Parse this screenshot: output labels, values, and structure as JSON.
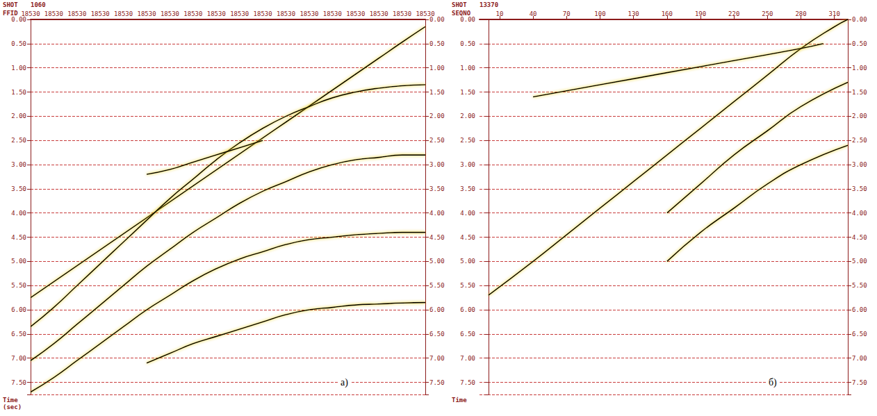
{
  "chart_data": [
    {
      "type": "line",
      "shot_label": "SHOT",
      "shot": "1060",
      "xlabel": "FFID",
      "ylabel": "Time (sec)",
      "panel": "а)",
      "categories": [
        "18530",
        "18530",
        "18530",
        "18530",
        "18530",
        "18530",
        "18530",
        "18530",
        "18530",
        "18530",
        "18530",
        "18530",
        "18530",
        "18530",
        "18530",
        "18530",
        "18530",
        "18530"
      ],
      "ylim": [
        0,
        7.75
      ],
      "yticks": [
        {
          "value": 0,
          "label": "0.00"
        },
        {
          "value": 0.5,
          "label": "0.50"
        },
        {
          "value": 1,
          "label": "1.00"
        },
        {
          "value": 1.5,
          "label": "1.50"
        },
        {
          "value": 2,
          "label": "2.00"
        },
        {
          "value": 2.5,
          "label": "2.50"
        },
        {
          "value": 3,
          "label": "3.00"
        },
        {
          "value": 3.5,
          "label": "3.50"
        },
        {
          "value": 4,
          "label": "4.00"
        },
        {
          "value": 4.5,
          "label": "4.50"
        },
        {
          "value": 5,
          "label": "5.00"
        },
        {
          "value": 5.5,
          "label": "5.50"
        },
        {
          "value": 6,
          "label": "6.00"
        },
        {
          "value": 6.5,
          "label": "6.50"
        },
        {
          "value": 7,
          "label": "7.00"
        },
        {
          "value": 7.5,
          "label": "7.50"
        }
      ],
      "grid": true,
      "series": [
        {
          "color": "#000000",
          "values": [
            5.75,
            5.42,
            5.09,
            4.76,
            4.43,
            4.1,
            3.77,
            3.44,
            3.11,
            2.78,
            2.45,
            2.12,
            1.79,
            1.46,
            1.13,
            0.8,
            0.47,
            0.15
          ]
        },
        {
          "color": "#000000",
          "values": [
            6.35,
            5.95,
            5.5,
            5.05,
            4.6,
            4.15,
            3.7,
            3.3,
            2.9,
            2.55,
            2.25,
            2.0,
            1.8,
            1.62,
            1.5,
            1.42,
            1.37,
            1.35
          ]
        },
        {
          "color": "#000000",
          "values": [
            7.05,
            6.7,
            6.3,
            5.9,
            5.5,
            5.1,
            4.75,
            4.4,
            4.1,
            3.8,
            3.55,
            3.35,
            3.15,
            3.0,
            2.9,
            2.85,
            2.8,
            2.8
          ]
        },
        {
          "color": "#000000",
          "values": [
            7.7,
            7.4,
            7.05,
            6.7,
            6.35,
            6.0,
            5.7,
            5.4,
            5.15,
            4.95,
            4.8,
            4.65,
            4.55,
            4.5,
            4.45,
            4.42,
            4.4,
            4.4
          ]
        },
        {
          "color": "#000000",
          "values": [
            null,
            null,
            null,
            null,
            null,
            7.1,
            6.9,
            6.7,
            6.55,
            6.4,
            6.25,
            6.1,
            6.0,
            5.95,
            5.9,
            5.88,
            5.86,
            5.85
          ]
        },
        {
          "color": "#000000",
          "values": [
            null,
            null,
            null,
            null,
            null,
            3.2,
            3.1,
            2.95,
            2.8,
            2.65,
            2.5,
            null,
            null,
            null,
            null,
            null,
            null,
            null
          ]
        }
      ]
    },
    {
      "type": "line",
      "shot_label": "SHOT",
      "shot": "13370",
      "xlabel": "SEQNO",
      "ylabel": "Time",
      "panel": "б)",
      "xlim": [
        -8,
        322
      ],
      "xticks": [
        10,
        40,
        70,
        100,
        130,
        160,
        190,
        220,
        250,
        280,
        310
      ],
      "ylim": [
        0,
        7.75
      ],
      "yticks": [
        {
          "value": 0,
          "label": "0.00"
        },
        {
          "value": 0.5,
          "label": "0.50"
        },
        {
          "value": 1,
          "label": "1.00"
        },
        {
          "value": 1.5,
          "label": "1.50"
        },
        {
          "value": 2,
          "label": "2.00"
        },
        {
          "value": 2.5,
          "label": "2.50"
        },
        {
          "value": 3,
          "label": "3.00"
        },
        {
          "value": 3.5,
          "label": "3.50"
        },
        {
          "value": 4,
          "label": "4.00"
        },
        {
          "value": 4.5,
          "label": "4.50"
        },
        {
          "value": 5,
          "label": "5.00"
        },
        {
          "value": 5.5,
          "label": "5.50"
        },
        {
          "value": 6,
          "label": "6.00"
        },
        {
          "value": 6.5,
          "label": "6.50"
        },
        {
          "value": 7,
          "label": "7.00"
        },
        {
          "value": 7.5,
          "label": "7.50"
        }
      ],
      "grid": true,
      "series": [
        {
          "color": "#000000",
          "x": [
            0,
            40,
            70,
            100,
            130,
            160,
            190,
            220,
            250,
            280,
            310,
            322
          ],
          "values": [
            5.7,
            5.0,
            4.45,
            3.9,
            3.35,
            2.8,
            2.25,
            1.7,
            1.15,
            0.6,
            0.15,
            0.0
          ]
        },
        {
          "color": "#000000",
          "x": [
            40,
            100,
            160,
            220,
            280,
            300
          ],
          "values": [
            1.6,
            1.35,
            1.1,
            0.85,
            0.6,
            0.5
          ]
        },
        {
          "color": "#000000",
          "x": [
            322,
            280,
            250,
            220,
            190,
            160
          ],
          "values": [
            1.3,
            1.8,
            2.3,
            2.8,
            3.4,
            4.0
          ]
        },
        {
          "color": "#000000",
          "x": [
            322,
            280,
            250,
            220,
            190,
            160
          ],
          "values": [
            2.6,
            3.0,
            3.4,
            3.9,
            4.4,
            5.0
          ]
        }
      ]
    }
  ]
}
